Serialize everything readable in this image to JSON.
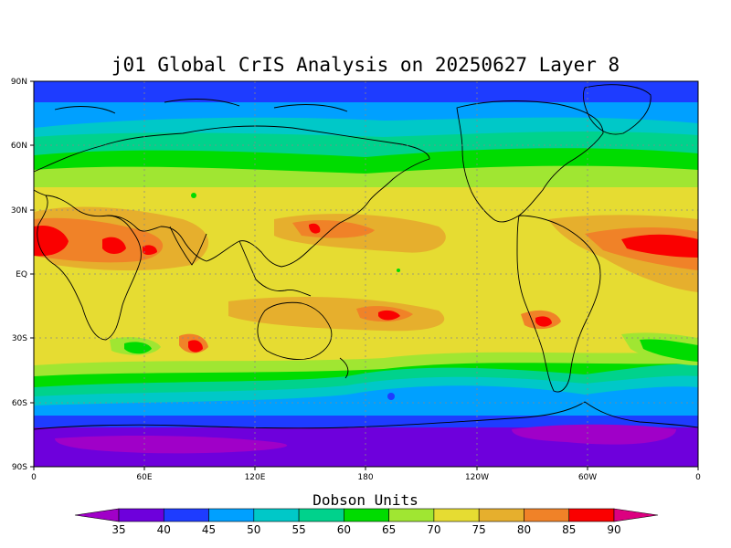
{
  "map": {
    "title": "j01 Global CrIS Analysis on 20250627 Layer 8",
    "lat_labels": [
      "90N",
      "60N",
      "30N",
      "EQ",
      "30S",
      "60S",
      "90S"
    ],
    "lon_labels": [
      "0",
      "60E",
      "120E",
      "180",
      "120W",
      "60W",
      "0"
    ]
  },
  "colorbar": {
    "title": "Dobson Units",
    "levels": [
      "35",
      "40",
      "45",
      "50",
      "55",
      "60",
      "65",
      "70",
      "75",
      "80",
      "85",
      "90"
    ],
    "colors": [
      "#a000c8",
      "#6e00dc",
      "#1e3cff",
      "#00a0ff",
      "#00c8c8",
      "#00d28c",
      "#00dc00",
      "#a0e632",
      "#e6dc32",
      "#e6af2d",
      "#f08228",
      "#fa0000",
      "#dc0080"
    ]
  },
  "field_colors": {
    "v35": "#a000c8",
    "v40": "#6e00dc",
    "v45": "#1e3cff",
    "v50": "#00a0ff",
    "v55": "#00c8c8",
    "v60": "#00d28c",
    "v65": "#00dc00",
    "v70": "#a0e632",
    "v75": "#e6dc32",
    "v80": "#e6af2d",
    "v85": "#f08228",
    "v90": "#fa0000"
  }
}
